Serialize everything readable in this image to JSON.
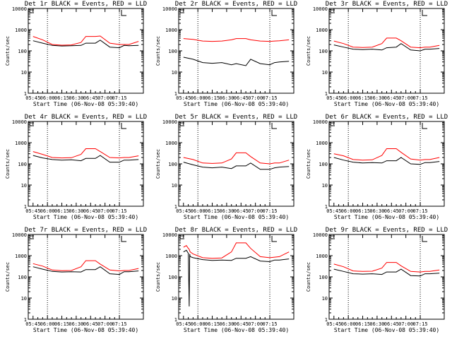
{
  "chart_data": [
    {
      "type": "line",
      "title": "Det 1r BLACK = Events, RED = LLD",
      "xlabel": "Start Time (06-Nov-08 05:39:40)",
      "ylabel": "Counts/sec",
      "x": [
        0,
        10,
        20,
        30,
        40,
        50,
        55,
        65,
        70,
        80,
        90,
        95,
        100,
        110
      ],
      "series": [
        {
          "color": "#000000",
          "values": [
            300,
            230,
            180,
            170,
            175,
            180,
            230,
            230,
            320,
            150,
            140,
            180,
            175,
            180
          ]
        },
        {
          "color": "#ff0000",
          "values": [
            480,
            330,
            200,
            185,
            190,
            250,
            480,
            480,
            500,
            230,
            200,
            200,
            200,
            280
          ]
        }
      ]
    },
    {
      "type": "line",
      "title": "Det 2r BLACK = Events, RED = LLD",
      "xlabel": "Start Time (06-Nov-08 05:39:40)",
      "ylabel": "Counts/sec",
      "x": [
        0,
        10,
        20,
        30,
        40,
        50,
        55,
        65,
        70,
        80,
        90,
        95,
        100,
        110
      ],
      "series": [
        {
          "color": "#000000",
          "values": [
            50,
            40,
            28,
            26,
            28,
            22,
            25,
            20,
            40,
            25,
            22,
            28,
            30,
            32
          ]
        },
        {
          "color": "#ff0000",
          "values": [
            380,
            350,
            290,
            280,
            290,
            330,
            380,
            380,
            330,
            290,
            280,
            290,
            300,
            330
          ]
        }
      ]
    },
    {
      "type": "line",
      "title": "Det 3r BLACK = Events, RED = LLD",
      "xlabel": "Start Time (06-Nov-08 05:39:40)",
      "ylabel": "Counts/sec",
      "x": [
        0,
        10,
        20,
        30,
        40,
        50,
        55,
        65,
        70,
        80,
        90,
        95,
        100,
        110
      ],
      "series": [
        {
          "color": "#000000",
          "values": [
            190,
            150,
            120,
            115,
            120,
            110,
            140,
            150,
            220,
            110,
            100,
            120,
            120,
            130
          ]
        },
        {
          "color": "#ff0000",
          "values": [
            290,
            220,
            150,
            145,
            150,
            220,
            400,
            400,
            300,
            150,
            140,
            150,
            150,
            180
          ]
        }
      ]
    },
    {
      "type": "line",
      "title": "Det 4r BLACK = Events, RED = LLD",
      "xlabel": "Start Time (06-Nov-08 05:39:40)",
      "ylabel": "Counts/sec",
      "x": [
        0,
        10,
        20,
        30,
        40,
        50,
        55,
        65,
        70,
        80,
        90,
        95,
        100,
        110
      ],
      "series": [
        {
          "color": "#000000",
          "values": [
            250,
            190,
            160,
            150,
            155,
            140,
            180,
            180,
            250,
            120,
            120,
            150,
            150,
            160
          ]
        },
        {
          "color": "#ff0000",
          "values": [
            380,
            280,
            200,
            190,
            195,
            280,
            520,
            520,
            380,
            200,
            190,
            200,
            200,
            240
          ]
        }
      ]
    },
    {
      "type": "line",
      "title": "Det 5r BLACK = Events, RED = LLD",
      "xlabel": "Start Time (06-Nov-08 05:39:40)",
      "ylabel": "Counts/sec",
      "x": [
        0,
        10,
        20,
        30,
        40,
        50,
        55,
        65,
        70,
        80,
        90,
        95,
        100,
        110
      ],
      "series": [
        {
          "color": "#000000",
          "values": [
            120,
            90,
            70,
            65,
            70,
            60,
            80,
            80,
            110,
            55,
            55,
            65,
            70,
            75
          ]
        },
        {
          "color": "#ff0000",
          "values": [
            200,
            160,
            110,
            105,
            110,
            170,
            330,
            330,
            220,
            110,
            100,
            110,
            110,
            150
          ]
        }
      ]
    },
    {
      "type": "line",
      "title": "Det 6r BLACK = Events, RED = LLD",
      "xlabel": "Start Time (06-Nov-08 05:39:40)",
      "ylabel": "Counts/sec",
      "x": [
        0,
        10,
        20,
        30,
        40,
        50,
        55,
        65,
        70,
        80,
        90,
        95,
        100,
        110
      ],
      "series": [
        {
          "color": "#000000",
          "values": [
            200,
            150,
            120,
            110,
            115,
            110,
            140,
            140,
            200,
            100,
            95,
            115,
            115,
            130
          ]
        },
        {
          "color": "#ff0000",
          "values": [
            300,
            240,
            160,
            150,
            155,
            250,
            520,
            520,
            350,
            170,
            150,
            160,
            160,
            200
          ]
        }
      ]
    },
    {
      "type": "line",
      "title": "Det 7r BLACK = Events, RED = LLD",
      "xlabel": "Start Time (06-Nov-08 05:39:40)",
      "ylabel": "Counts/sec",
      "x": [
        0,
        10,
        20,
        30,
        40,
        50,
        55,
        65,
        70,
        80,
        90,
        95,
        100,
        110
      ],
      "series": [
        {
          "color": "#000000",
          "values": [
            300,
            230,
            180,
            170,
            175,
            170,
            220,
            220,
            300,
            140,
            130,
            175,
            175,
            190
          ]
        },
        {
          "color": "#ff0000",
          "values": [
            420,
            320,
            210,
            195,
            200,
            300,
            580,
            580,
            400,
            210,
            190,
            200,
            200,
            250
          ]
        }
      ]
    },
    {
      "type": "line",
      "title": "Det 8r BLACK = Events, RED = LLD",
      "xlabel": "Start Time (06-Nov-08 05:39:40)",
      "ylabel": "Counts/sec",
      "x": [
        0,
        3,
        5,
        6,
        6.5,
        7,
        10,
        20,
        30,
        40,
        50,
        55,
        65,
        70,
        80,
        90,
        95,
        100,
        110
      ],
      "series": [
        {
          "color": "#000000",
          "values": [
            1500,
            1800,
            1300,
            4,
            1200,
            900,
            800,
            650,
            600,
            620,
            600,
            750,
            750,
            900,
            560,
            520,
            620,
            620,
            700
          ]
        },
        {
          "color": "#ff0000",
          "values": [
            2500,
            3000,
            2200,
            2000,
            1700,
            1500,
            1200,
            800,
            750,
            780,
            1500,
            4000,
            4000,
            2200,
            900,
            800,
            850,
            900,
            1500
          ]
        }
      ]
    },
    {
      "type": "line",
      "title": "Det 9r BLACK = Events, RED = LLD",
      "xlabel": "Start Time (06-Nov-08 05:39:40)",
      "ylabel": "Counts/sec",
      "x": [
        0,
        10,
        20,
        30,
        40,
        50,
        55,
        65,
        70,
        80,
        90,
        95,
        100,
        110
      ],
      "series": [
        {
          "color": "#000000",
          "values": [
            230,
            180,
            140,
            135,
            140,
            130,
            170,
            170,
            230,
            115,
            110,
            140,
            140,
            150
          ]
        },
        {
          "color": "#ff0000",
          "values": [
            400,
            300,
            190,
            180,
            185,
            260,
            480,
            480,
            330,
            180,
            170,
            180,
            180,
            210
          ]
        }
      ]
    }
  ],
  "axes": {
    "x_ticks": [
      "05:45",
      "06:00",
      "06:15",
      "06:30",
      "06:45",
      "07:00",
      "07:15"
    ],
    "y_ticks": [
      "1",
      "10",
      "100",
      "1000",
      "10000"
    ],
    "dotted_x": [
      15,
      90
    ],
    "marker_x": 90
  }
}
